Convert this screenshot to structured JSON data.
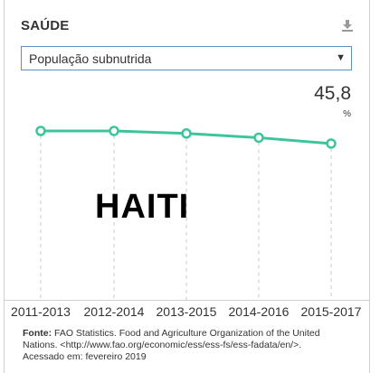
{
  "header": {
    "title": "SAÚDE"
  },
  "icons": {
    "download": "download-icon"
  },
  "dropdown": {
    "selected": "População subnutrida"
  },
  "current_value": {
    "value": "45,8",
    "unit": "%"
  },
  "country": "HAITI",
  "chart_data": {
    "type": "line",
    "categories": [
      "2011-2013",
      "2012-2014",
      "2013-2015",
      "2014-2016",
      "2015-2017"
    ],
    "values": [
      47.3,
      47.3,
      47.0,
      46.5,
      45.8
    ],
    "ylim": [
      30,
      50
    ],
    "title": "",
    "xlabel": "",
    "ylabel": "",
    "line_color": "#3cc59a",
    "grid": false
  },
  "source": {
    "label": "Fonte:",
    "text": "FAO Statistics. Food and Agriculture Organization of the United Nations. <http://www.fao.org/economic/ess/ess-fs/ess-fadata/en/>.",
    "accessed": "Acessado em: fevereiro 2019"
  }
}
